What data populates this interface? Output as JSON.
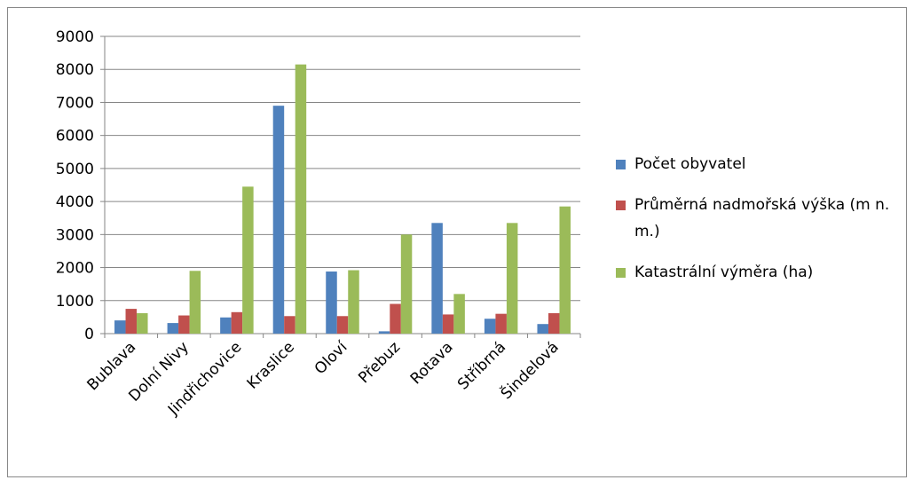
{
  "chart_data": {
    "type": "bar",
    "categories": [
      "Bublava",
      "Dolní Nivy",
      "Jindřichovice",
      "Kraslice",
      "Oloví",
      "Přebuz",
      "Rotava",
      "Stříbrná",
      "Šindelová"
    ],
    "series": [
      {
        "name": "Počet obyvatel",
        "color": "#4f81bd",
        "values": [
          400,
          320,
          490,
          6900,
          1880,
          70,
          3350,
          450,
          290
        ]
      },
      {
        "name": "Průměrná nadmořská výška (m n. m.)",
        "color": "#c0504d",
        "values": [
          750,
          550,
          650,
          530,
          530,
          900,
          580,
          600,
          620
        ]
      },
      {
        "name": "Katastrální výměra (ha)",
        "color": "#9bbb59",
        "values": [
          620,
          1900,
          4450,
          8150,
          1920,
          3000,
          1200,
          3350,
          3850
        ]
      }
    ],
    "ylim": [
      0,
      9000
    ],
    "yticks": [
      0,
      1000,
      2000,
      3000,
      4000,
      5000,
      6000,
      7000,
      8000,
      9000
    ],
    "grid": true,
    "legend": "right"
  }
}
